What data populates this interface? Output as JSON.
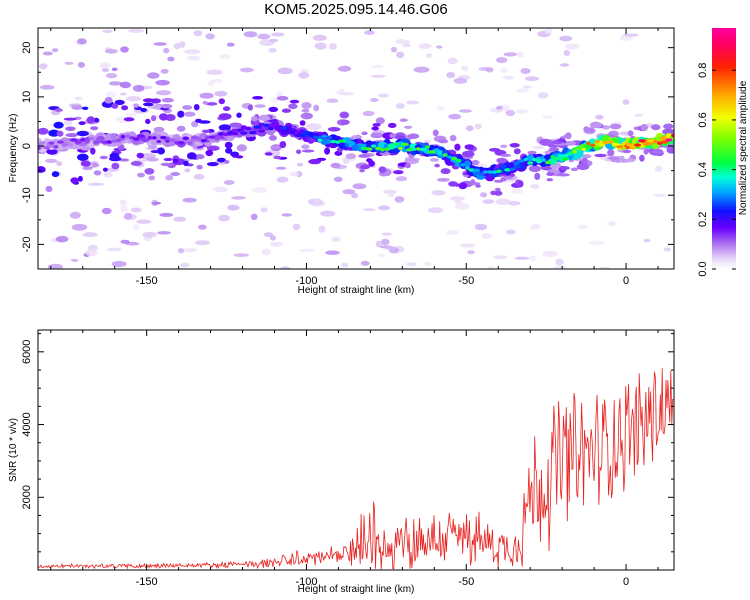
{
  "title": "KOM5.2025.095.14.46.G06",
  "chart_data": [
    {
      "type": "heatmap",
      "xlabel": "Height of straight line (km)",
      "ylabel": "Frequency (Hz)",
      "xlim": [
        -184,
        15
      ],
      "ylim": [
        -25,
        24
      ],
      "xticks": [
        -150,
        -100,
        -50,
        0
      ],
      "yticks": [
        -20,
        -10,
        0,
        10,
        20
      ],
      "colorbar": {
        "label": "Normalized spectral amplitude",
        "range": [
          0,
          0.97
        ],
        "ticks": [
          0.0,
          0.2,
          0.4,
          0.6,
          0.8
        ],
        "colormap": "hsv-like: white/lavender (0) → purple → blue (0.2) → cyan → green (0.4) → yellow (0.6) → orange → red → pink (max)"
      },
      "ridge": {
        "description": "dominant frequency line of high normalized amplitude",
        "x": [
          -184,
          -170,
          -160,
          -150,
          -140,
          -130,
          -120,
          -110,
          -100,
          -90,
          -80,
          -70,
          -60,
          -50,
          -45,
          -40,
          -35,
          -30,
          -25,
          -20,
          -15,
          -10,
          -5,
          0,
          5,
          10,
          15
        ],
        "y": [
          0,
          1,
          1.5,
          1.5,
          1,
          1.5,
          3,
          4,
          2,
          1,
          -0.5,
          0,
          -1,
          -4,
          -6,
          -5,
          -4,
          -3,
          -3,
          -2,
          -1,
          0.5,
          1,
          0,
          0.5,
          1,
          2
        ],
        "amplitude": [
          0.12,
          0.14,
          0.15,
          0.16,
          0.15,
          0.16,
          0.2,
          0.22,
          0.3,
          0.38,
          0.42,
          0.48,
          0.44,
          0.4,
          0.38,
          0.36,
          0.35,
          0.38,
          0.42,
          0.5,
          0.6,
          0.72,
          0.82,
          0.9,
          0.92,
          0.9,
          0.95
        ]
      }
    },
    {
      "type": "line",
      "xlabel": "Height of straight line (km)",
      "ylabel": "SNR (10 * v/v)",
      "xlim": [
        -184,
        15
      ],
      "ylim": [
        0,
        6600
      ],
      "xticks": [
        -150,
        -100,
        -50,
        0
      ],
      "yticks": [
        2000,
        4000,
        6000
      ],
      "color": "#e8201e",
      "envelope": {
        "x": [
          -184,
          -160,
          -140,
          -120,
          -110,
          -105,
          -100,
          -95,
          -90,
          -87,
          -85,
          -80,
          -75,
          -70,
          -65,
          -60,
          -55,
          -50,
          -45,
          -40,
          -35,
          -33,
          -30,
          -25,
          -20,
          -15,
          -10,
          -5,
          0,
          5,
          10,
          15
        ],
        "base": [
          100,
          110,
          120,
          150,
          200,
          260,
          320,
          360,
          400,
          420,
          550,
          700,
          650,
          700,
          800,
          850,
          900,
          950,
          800,
          650,
          600,
          1200,
          2000,
          2500,
          3000,
          3000,
          3300,
          3500,
          3800,
          4000,
          4400,
          4600
        ],
        "amplitude": [
          60,
          80,
          90,
          100,
          200,
          280,
          300,
          300,
          250,
          300,
          900,
          1300,
          900,
          900,
          1000,
          900,
          1000,
          1000,
          800,
          700,
          600,
          1500,
          2100,
          2200,
          2600,
          2200,
          2000,
          2000,
          1900,
          2000,
          2000,
          1500
        ]
      }
    }
  ]
}
